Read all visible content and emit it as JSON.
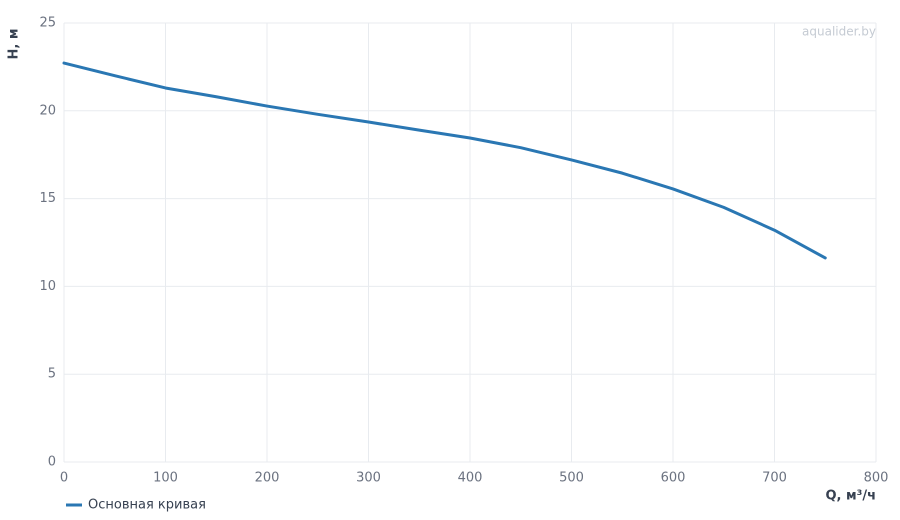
{
  "chart_data": {
    "type": "line",
    "x_label": "Q, м³/ч",
    "y_label": "H, м",
    "watermark": "aqualider.by",
    "x": [
      0,
      50,
      100,
      150,
      200,
      250,
      300,
      350,
      400,
      450,
      500,
      550,
      600,
      650,
      700,
      750
    ],
    "series": [
      {
        "name": "Основная кривая",
        "color": "#2a77b3",
        "values": [
          22.72,
          22.0,
          21.3,
          20.8,
          20.27,
          19.8,
          19.36,
          18.9,
          18.45,
          17.9,
          17.2,
          16.45,
          15.55,
          14.5,
          13.2,
          11.62
        ]
      }
    ],
    "xlim": [
      0,
      800
    ],
    "xticks": [
      0,
      100,
      200,
      300,
      400,
      500,
      600,
      700,
      800
    ],
    "ylim": [
      0,
      25
    ],
    "yticks": [
      0,
      5,
      10,
      15,
      20,
      25
    ],
    "grid": true
  }
}
